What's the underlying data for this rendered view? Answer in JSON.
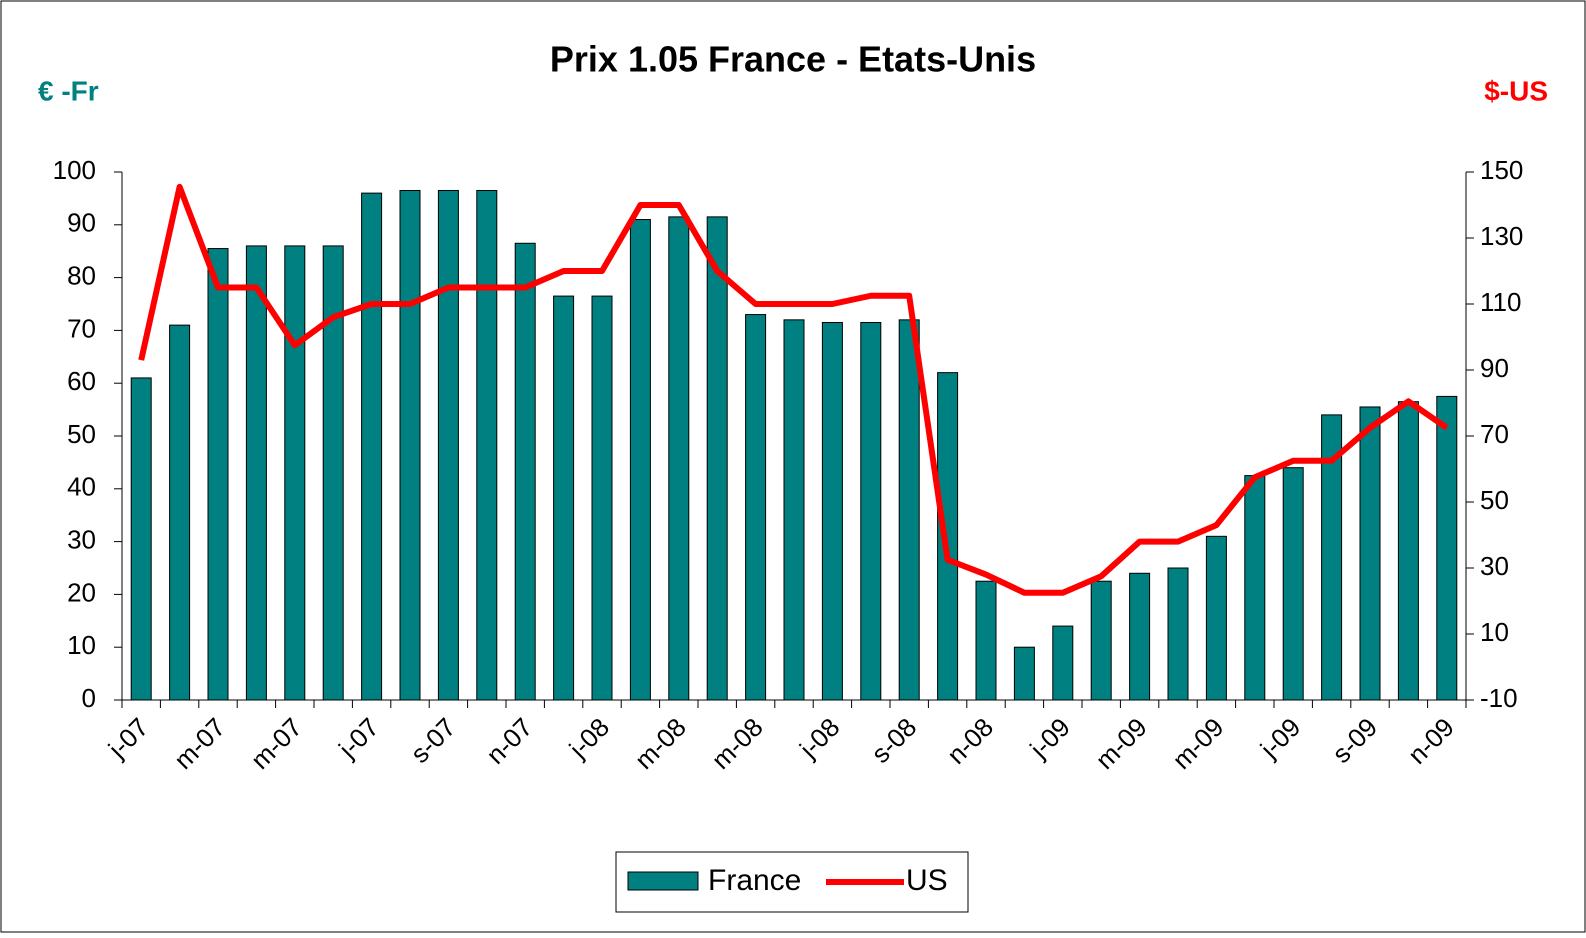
{
  "chart_data": {
    "type": "bar",
    "title": "Prix 1.05 France - Etats-Unis",
    "y_label": "€ -Fr",
    "y2_label": "$-US",
    "categories": [
      "j-07",
      null,
      "m-07",
      null,
      "m-07",
      null,
      "j-07",
      null,
      "s-07",
      null,
      "n-07",
      null,
      "j-08",
      null,
      "m-08",
      null,
      "m-08",
      null,
      "j-08",
      null,
      "s-08",
      null,
      "n-08",
      null,
      "j-09",
      null,
      "m-09",
      null,
      "m-09",
      null,
      "j-09",
      null,
      "s-09",
      null,
      "n-09"
    ],
    "series": [
      {
        "name": "France",
        "type": "bar",
        "color": "#008080",
        "values": [
          61,
          71,
          85.5,
          86,
          86,
          86,
          96,
          96.5,
          96.5,
          96.5,
          86.5,
          76.5,
          76.5,
          91,
          91.5,
          91.5,
          73,
          72,
          71.5,
          71.5,
          72,
          62,
          22.5,
          10,
          14,
          22.5,
          24,
          25,
          31,
          42.5,
          44,
          54,
          55.5,
          56.5,
          57.5
        ]
      },
      {
        "name": "US",
        "type": "line",
        "axis": "y2",
        "color": "#ff0000",
        "values": [
          93,
          145.5,
          115,
          115,
          97.5,
          106,
          110,
          110,
          115,
          115,
          115,
          120,
          120,
          140,
          140,
          120,
          110,
          110,
          110,
          112.5,
          112.5,
          32.5,
          28,
          22.5,
          22.5,
          27.5,
          38,
          38,
          43,
          57.5,
          62.5,
          62.5,
          72.5,
          80.5,
          72.5
        ]
      }
    ],
    "ylim": [
      0,
      100
    ],
    "yticks": [
      0,
      10,
      20,
      30,
      40,
      50,
      60,
      70,
      80,
      90,
      100
    ],
    "y2lim": [
      -10,
      150
    ],
    "y2ticks": [
      -10,
      10,
      30,
      50,
      70,
      90,
      110,
      130,
      150
    ]
  }
}
